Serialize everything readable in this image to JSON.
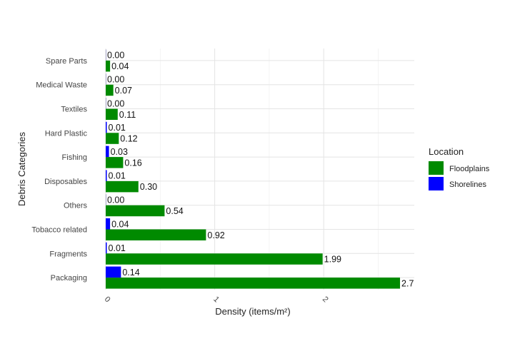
{
  "chart_data": {
    "type": "bar",
    "orientation": "horizontal",
    "categories": [
      "Packaging",
      "Fragments",
      "Tobacco related",
      "Others",
      "Disposables",
      "Fishing",
      "Hard Plastic",
      "Textiles",
      "Medical Waste",
      "Spare Parts"
    ],
    "series": [
      {
        "name": "Floodplains",
        "color": "#008a00",
        "values": [
          2.7,
          1.99,
          0.92,
          0.54,
          0.3,
          0.16,
          0.12,
          0.11,
          0.07,
          0.04
        ],
        "labels": [
          "2.7",
          "1.99",
          "0.92",
          "0.54",
          "0.30",
          "0.16",
          "0.12",
          "0.11",
          "0.07",
          "0.04"
        ]
      },
      {
        "name": "Shorelines",
        "color": "#0000ff",
        "values": [
          0.14,
          0.01,
          0.04,
          0.0,
          0.01,
          0.03,
          0.01,
          0.0,
          0.0,
          0.0
        ],
        "labels": [
          "0.14",
          "0.01",
          "0.04",
          "0.00",
          "0.01",
          "0.03",
          "0.01",
          "0.00",
          "0.00",
          "0.00"
        ]
      }
    ],
    "xlabel": "Density (items/m²)",
    "ylabel": "Debris Categories",
    "xlim": [
      0,
      2.8
    ],
    "xticks": [
      "0",
      "1",
      "2"
    ],
    "grid": true,
    "legend": {
      "title": "Location",
      "position": "right",
      "entries": [
        "Floodplains",
        "Shorelines"
      ]
    }
  }
}
